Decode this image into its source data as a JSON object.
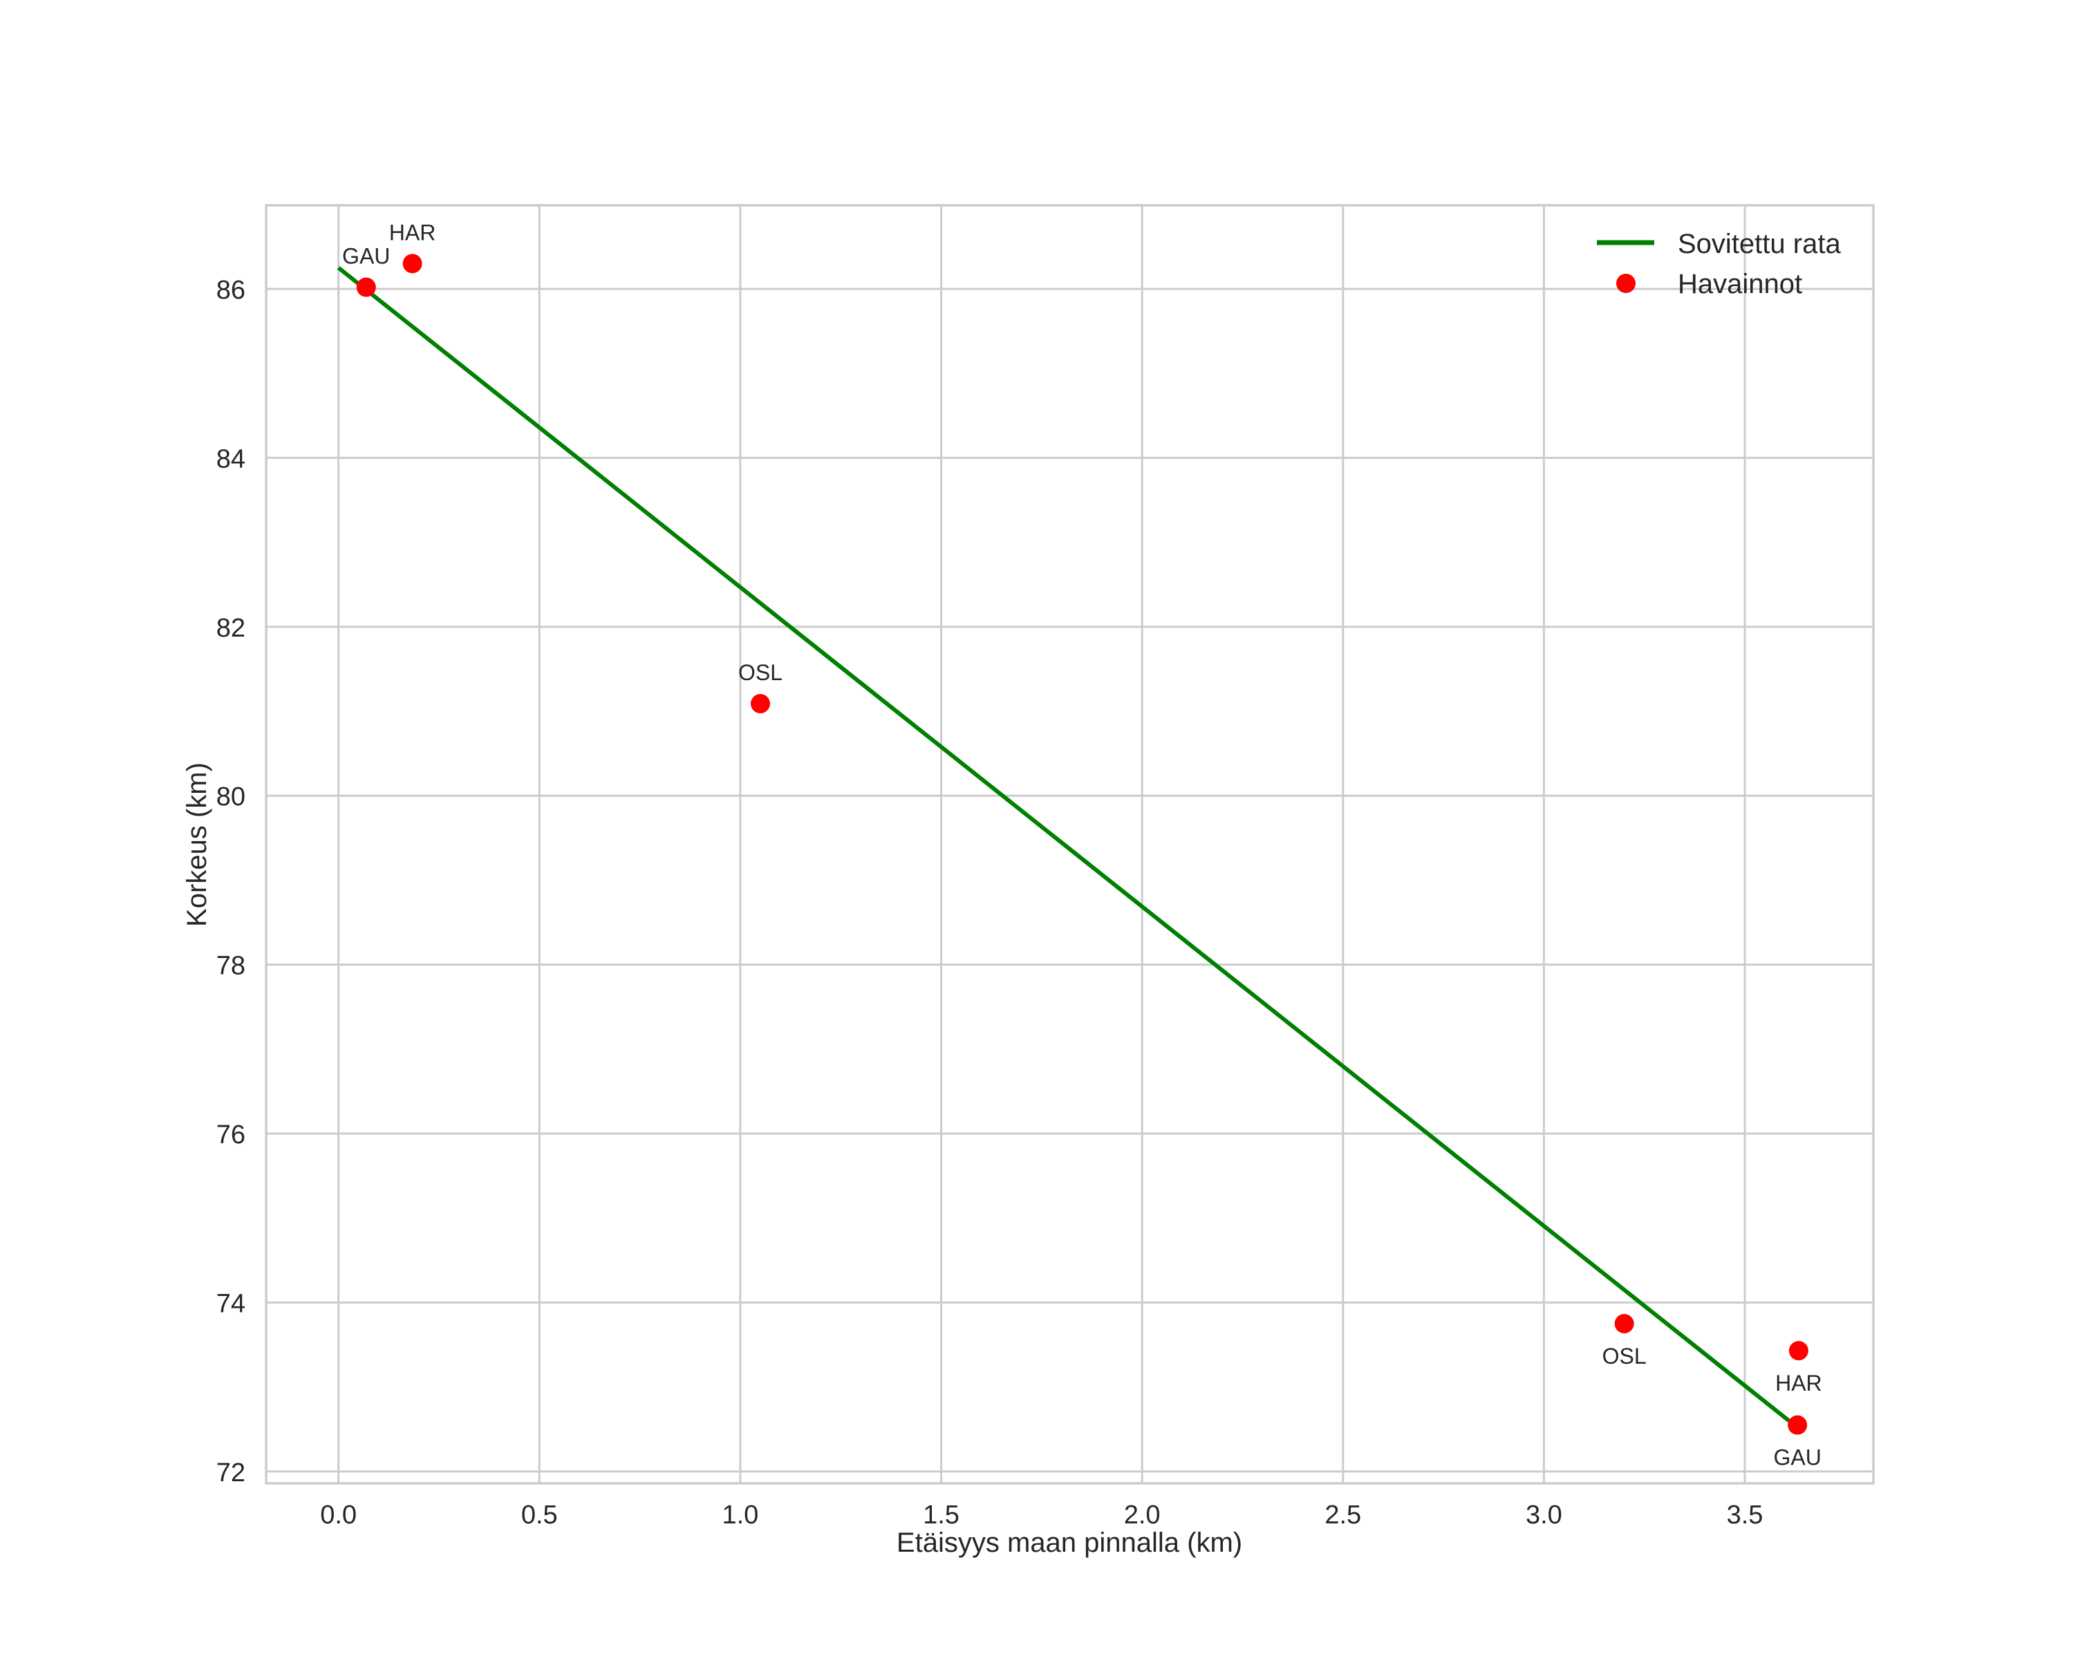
{
  "chart_data": {
    "type": "scatter",
    "title": "",
    "xlabel": "Etäisyys maan pinnalla (km)",
    "ylabel": "Korkeus (km)",
    "xlim": [
      -0.18,
      3.82
    ],
    "ylim": [
      71.86,
      86.99
    ],
    "xticks": [
      0.0,
      0.5,
      1.0,
      1.5,
      2.0,
      2.5,
      3.0,
      3.5
    ],
    "xtick_labels": [
      "0.0",
      "0.5",
      "1.0",
      "1.5",
      "2.0",
      "2.5",
      "3.0",
      "3.5"
    ],
    "yticks": [
      72,
      74,
      76,
      78,
      80,
      82,
      84,
      86
    ],
    "ytick_labels": [
      "72",
      "74",
      "76",
      "78",
      "80",
      "82",
      "84",
      "86"
    ],
    "grid": true,
    "legend_position": "upper right",
    "series": [
      {
        "name": "Sovitettu rata",
        "kind": "line",
        "color": "#008000",
        "x": [
          0.0,
          3.61
        ],
        "y": [
          86.25,
          72.6
        ]
      },
      {
        "name": "Havainnot",
        "kind": "scatter",
        "color": "#ff0000",
        "points": [
          {
            "label": "GAU",
            "x": 0.069,
            "y": 86.02,
            "label_pos": "above"
          },
          {
            "label": "HAR",
            "x": 0.184,
            "y": 86.3,
            "label_pos": "above"
          },
          {
            "label": "OSL",
            "x": 1.05,
            "y": 81.09,
            "label_pos": "above"
          },
          {
            "label": "OSL",
            "x": 3.2,
            "y": 73.75,
            "label_pos": "below"
          },
          {
            "label": "HAR",
            "x": 3.634,
            "y": 73.43,
            "label_pos": "below"
          },
          {
            "label": "GAU",
            "x": 3.631,
            "y": 72.55,
            "label_pos": "below"
          }
        ]
      }
    ]
  },
  "legend": {
    "items": [
      {
        "label": "Sovitettu rata",
        "marker": "line",
        "color": "#008000"
      },
      {
        "label": "Havainnot",
        "marker": "dot",
        "color": "#ff0000"
      }
    ]
  }
}
